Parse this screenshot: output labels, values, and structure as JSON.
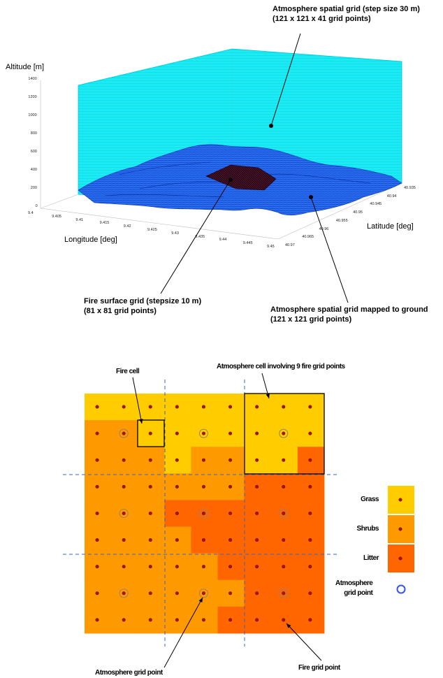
{
  "top_figure": {
    "y_axis_label": "Altitude [m]",
    "x_axis_label": "Longitude [deg]",
    "depth_axis_label": "Latitude [deg]",
    "z_ticks": [
      "1400",
      "1200",
      "1000",
      "800",
      "600",
      "400",
      "200",
      "0"
    ],
    "x_ticks": [
      "9.4",
      "9.405",
      "9.41",
      "9.415",
      "9.42",
      "9.425",
      "9.43",
      "9.435",
      "9.44",
      "9.445",
      "9.45"
    ],
    "y_ticks": [
      "40.935",
      "40.94",
      "40.945",
      "40.95",
      "40.955",
      "40.96",
      "40.965",
      "40.97"
    ],
    "annotations": {
      "atmosphere_grid": [
        "Atmosphere spatial grid (step size 30 m)",
        "(121 x 121 x 41 grid points)"
      ],
      "fire_surface_grid": [
        "Fire surface grid (stepsize 10 m)",
        "(81 x 81 grid points)"
      ],
      "atmosphere_mapped": [
        "Atmosphere spatial grid mapped to ground",
        "(121 x 121 grid points)"
      ]
    },
    "colors": {
      "atmosphere": "#00eaf2",
      "terrain": "#2060ee",
      "fire_grid": "#3a0f1c"
    }
  },
  "bottom_figure": {
    "label_fire_cell": "Fire cell",
    "label_atm_cell": "Atmosphere cell involving 9 fire grid points",
    "label_atm_point": "Atmosphere grid point",
    "label_fire_point": "Fire grid point",
    "legend": [
      {
        "label": "Grass",
        "color": "#ffcc00"
      },
      {
        "label": "Shrubs",
        "color": "#ff9900"
      },
      {
        "label": "Litter",
        "color": "#ff6600"
      }
    ],
    "legend_atm_label": [
      "Atmosphere",
      "grid point"
    ],
    "fuel_map": [
      "GGGGGGGGG",
      "SSGGGGGGG",
      "SSSGSSGGL",
      "SSSSSSLLL",
      "SSSLLLLLL",
      "SSSSLLLLL",
      "SSSSSLLLL",
      "SSSSSSLLL",
      "SSSSSLLLL"
    ],
    "colors": {
      "G": "#ffcc00",
      "S": "#ff9900",
      "L": "#ff6600",
      "dashed": "#3366cc",
      "atm_point": "#3355ee"
    }
  }
}
